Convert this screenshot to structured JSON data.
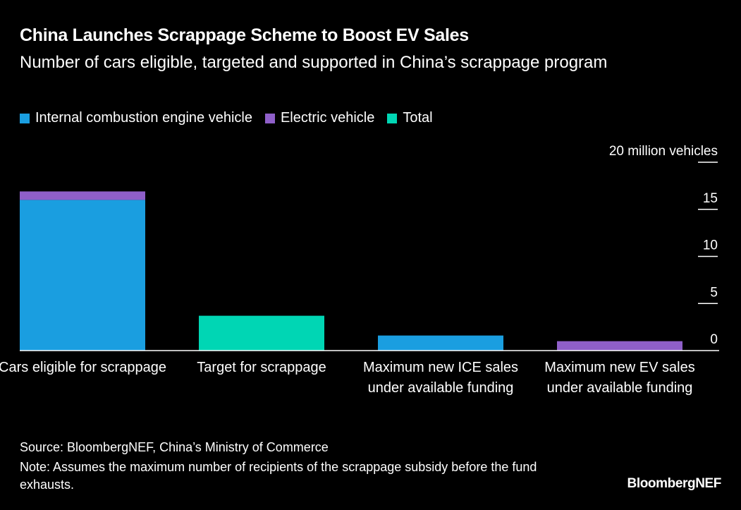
{
  "chart_data": {
    "type": "bar",
    "stacked": true,
    "title": "China Launches Scrappage Scheme to Boost EV Sales",
    "subtitle": "Number of cars eligible, targeted and supported in China’s scrappage program",
    "categories": [
      "Cars eligible for scrappage",
      "Target for scrappage",
      "Maximum new ICE sales under available funding",
      "Maximum new EV sales under available funding"
    ],
    "series": [
      {
        "name": "Internal combustion engine vehicle",
        "color": "#1a9ee0",
        "values": [
          16.0,
          null,
          1.6,
          null
        ]
      },
      {
        "name": "Electric vehicle",
        "color": "#8f5fc9",
        "values": [
          0.9,
          null,
          null,
          1.0
        ]
      },
      {
        "name": "Total",
        "color": "#00d6b4",
        "values": [
          null,
          3.7,
          null,
          null
        ]
      }
    ],
    "ylim": [
      0,
      20
    ],
    "yticks": [
      0,
      5,
      10,
      15,
      {
        "value": 20,
        "label": "20 million vehicles"
      }
    ],
    "legend": "top-left",
    "source": "Source: BloombergNEF, China’s Ministry of Commerce",
    "note": "Note: Assumes the maximum number of recipients of the scrappage subsidy before the fund exhausts.",
    "brand": "BloombergNEF"
  }
}
